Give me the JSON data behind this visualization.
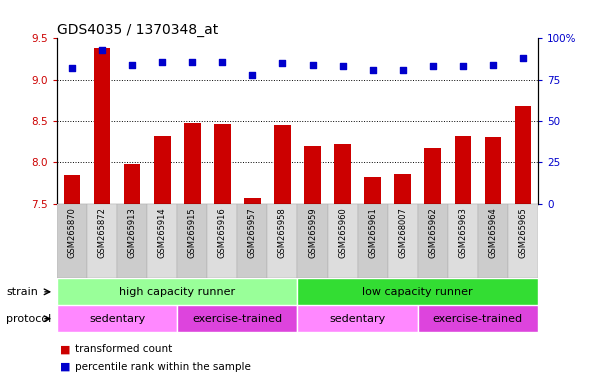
{
  "title": "GDS4035 / 1370348_at",
  "samples": [
    "GSM265870",
    "GSM265872",
    "GSM265913",
    "GSM265914",
    "GSM265915",
    "GSM265916",
    "GSM265957",
    "GSM265958",
    "GSM265959",
    "GSM265960",
    "GSM265961",
    "GSM268007",
    "GSM265962",
    "GSM265963",
    "GSM265964",
    "GSM265965"
  ],
  "bar_values": [
    7.85,
    9.38,
    7.98,
    8.32,
    8.48,
    8.46,
    7.57,
    8.45,
    8.2,
    8.22,
    7.82,
    7.86,
    8.17,
    8.32,
    8.3,
    8.68
  ],
  "dot_values": [
    82,
    93,
    84,
    86,
    86,
    86,
    78,
    85,
    84,
    83,
    81,
    81,
    83,
    83,
    84,
    88
  ],
  "ylim_left": [
    7.5,
    9.5
  ],
  "ylim_right": [
    0,
    100
  ],
  "yticks_left": [
    7.5,
    8.0,
    8.5,
    9.0,
    9.5
  ],
  "yticks_right": [
    0,
    25,
    50,
    75,
    100
  ],
  "bar_color": "#cc0000",
  "dot_color": "#0000cc",
  "strain_groups": [
    {
      "label": "high capacity runner",
      "start": 0,
      "end": 8,
      "color": "#99ff99"
    },
    {
      "label": "low capacity runner",
      "start": 8,
      "end": 16,
      "color": "#33dd33"
    }
  ],
  "protocol_groups": [
    {
      "label": "sedentary",
      "start": 0,
      "end": 4,
      "color": "#ff88ff"
    },
    {
      "label": "exercise-trained",
      "start": 4,
      "end": 8,
      "color": "#dd44dd"
    },
    {
      "label": "sedentary",
      "start": 8,
      "end": 12,
      "color": "#ff88ff"
    },
    {
      "label": "exercise-trained",
      "start": 12,
      "end": 16,
      "color": "#dd44dd"
    }
  ],
  "legend_bar_label": "transformed count",
  "legend_dot_label": "percentile rank within the sample",
  "strain_label": "strain",
  "protocol_label": "protocol",
  "tick_bg_color": "#cccccc",
  "title_fontsize": 10,
  "axis_fontsize": 7.5,
  "label_fontsize": 8,
  "annot_fontsize": 7.5,
  "sample_fontsize": 6
}
